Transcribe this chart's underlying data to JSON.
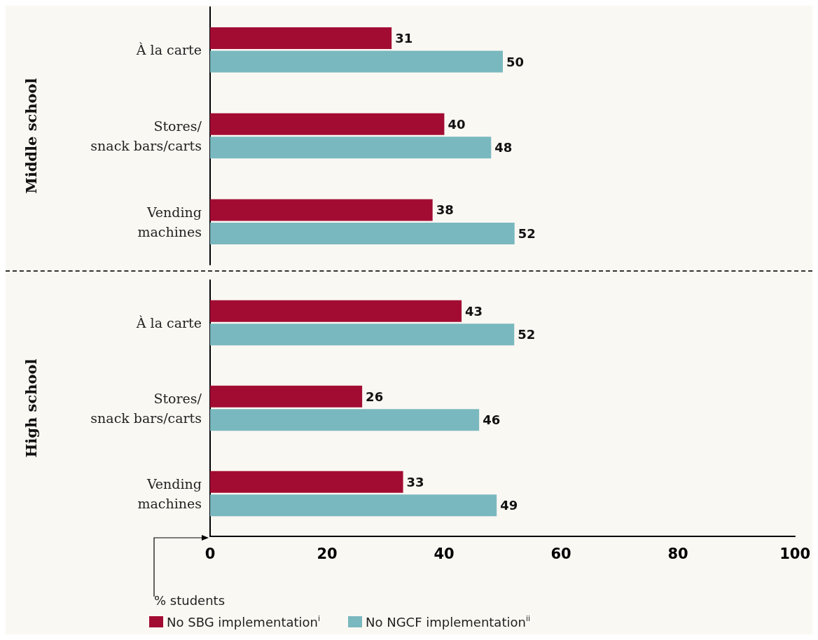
{
  "chart_data": [
    {
      "type": "bar",
      "orientation": "horizontal",
      "ylabel": "Middle school",
      "categories": [
        "À la carte",
        "Stores/\nsnack bars/carts",
        "Vending\nmachines"
      ],
      "series": [
        {
          "color": "#a20c33",
          "values": [
            31,
            40,
            38
          ]
        },
        {
          "color": "#7ab8bf",
          "values": [
            50,
            48,
            52
          ]
        }
      ],
      "xlim": [
        0,
        100
      ],
      "xticks": [
        0,
        20,
        40,
        60,
        80,
        100
      ],
      "tick_labels": "y",
      "data_labels": true,
      "grid": false,
      "legend": false
    },
    {
      "type": "bar",
      "orientation": "horizontal",
      "ylabel": "High school",
      "xlabel": "% students",
      "categories": [
        "À la carte",
        "Stores/\nsnack bars/carts",
        "Vending\nmachines"
      ],
      "series": [
        {
          "name": "No SBG implementation$^{i}$",
          "color": "#a20c33",
          "values": [
            43,
            26,
            33
          ]
        },
        {
          "name": "No NGCF implementation$^{ii}$",
          "color": "#7ab8bf",
          "values": [
            52,
            46,
            49
          ]
        }
      ],
      "xlim": [
        0,
        100
      ],
      "xticks": [
        0,
        20,
        40,
        60,
        80,
        100
      ],
      "data_labels": true,
      "grid": false,
      "legend": "bottom left"
    }
  ]
}
